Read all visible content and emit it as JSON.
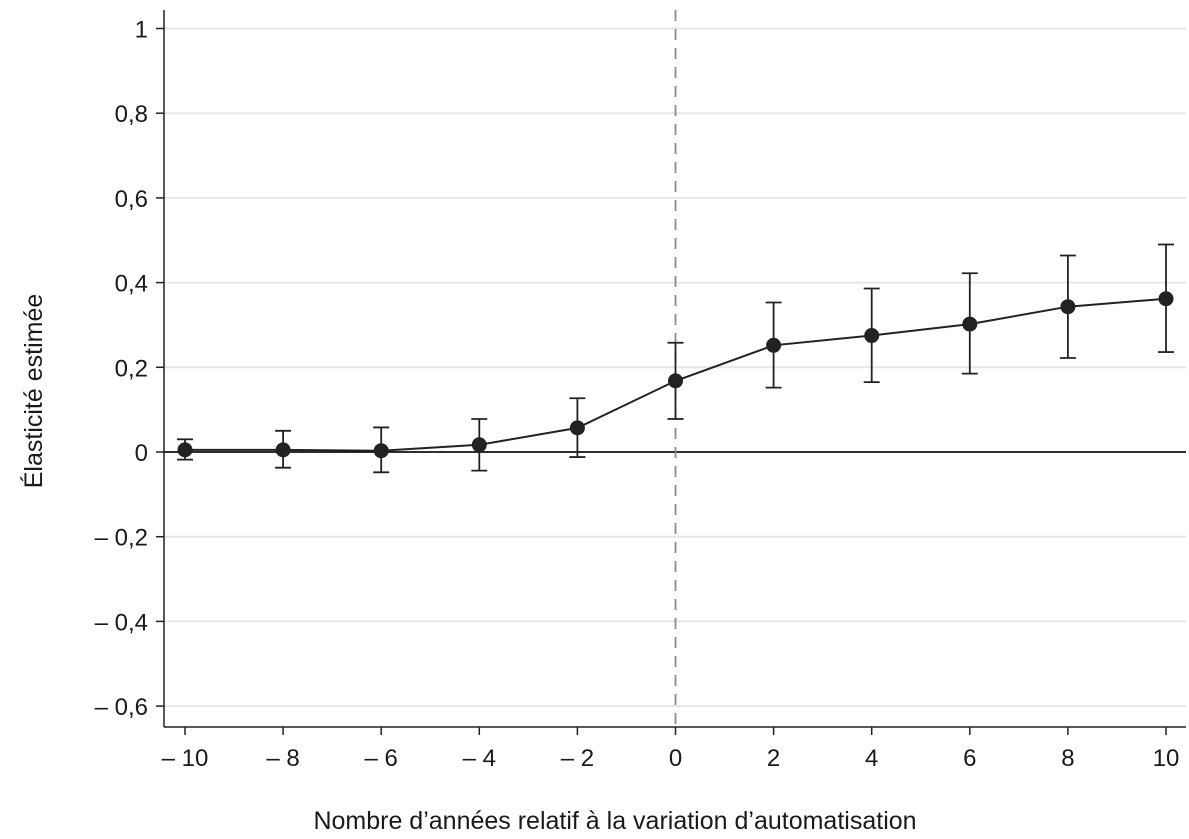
{
  "chart_data": {
    "type": "line",
    "xlabel": "Nombre d’années relatif à la variation d’automatisation",
    "ylabel": "Élasticité estimée",
    "xlim": [
      -10.5,
      10.3
    ],
    "ylim": [
      -0.65,
      1.05
    ],
    "x_ticks": [
      {
        "value": -10,
        "label": "– 10"
      },
      {
        "value": -8,
        "label": "– 8"
      },
      {
        "value": -6,
        "label": "– 6"
      },
      {
        "value": -4,
        "label": "– 4"
      },
      {
        "value": -2,
        "label": "– 2"
      },
      {
        "value": 0,
        "label": "0"
      },
      {
        "value": 2,
        "label": "2"
      },
      {
        "value": 4,
        "label": "4"
      },
      {
        "value": 6,
        "label": "6"
      },
      {
        "value": 8,
        "label": "8"
      },
      {
        "value": 10,
        "label": "10"
      }
    ],
    "y_ticks": [
      {
        "value": 1,
        "label": "1"
      },
      {
        "value": 0.8,
        "label": "0,8"
      },
      {
        "value": 0.6,
        "label": "0,6"
      },
      {
        "value": 0.4,
        "label": "0,4"
      },
      {
        "value": 0.2,
        "label": "0,2"
      },
      {
        "value": 0,
        "label": "0"
      },
      {
        "value": -0.2,
        "label": "– 0,2"
      },
      {
        "value": -0.4,
        "label": "– 0,4"
      },
      {
        "value": -0.6,
        "label": "– 0,6"
      }
    ],
    "grid": true,
    "reference_lines": {
      "horizontal_y": 0,
      "vertical_x": 0,
      "vertical_style": "dashed"
    },
    "series": [
      {
        "x": [
          -10,
          -8,
          -6,
          -4,
          -2,
          0,
          2,
          4,
          6,
          8,
          10
        ],
        "y": [
          0.005,
          0.005,
          0.003,
          0.017,
          0.057,
          0.168,
          0.252,
          0.275,
          0.302,
          0.343,
          0.362
        ],
        "ci_low": [
          -0.018,
          -0.037,
          -0.048,
          -0.044,
          -0.012,
          0.078,
          0.152,
          0.165,
          0.185,
          0.222,
          0.236
        ],
        "ci_high": [
          0.03,
          0.05,
          0.058,
          0.078,
          0.127,
          0.258,
          0.353,
          0.386,
          0.422,
          0.464,
          0.49
        ]
      }
    ],
    "colors": {
      "line": "#222222",
      "grid": "#e6e6e6",
      "axis": "#222222",
      "reference": "#8a8a8a"
    }
  }
}
